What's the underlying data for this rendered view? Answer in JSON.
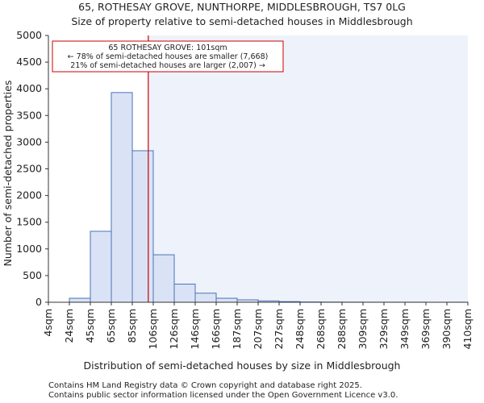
{
  "chart_data": {
    "type": "bar",
    "title_line1": "65, ROTHESAY GROVE, NUNTHORPE, MIDDLESBROUGH, TS7 0LG",
    "title_line2": "Size of property relative to semi-detached houses in Middlesbrough",
    "xlabel": "Distribution of semi-detached houses by size in Middlesbrough",
    "ylabel": "Number of semi-detached properties",
    "ylim": [
      0,
      5000
    ],
    "yticks": [
      0,
      500,
      1000,
      1500,
      2000,
      2500,
      3000,
      3500,
      4000,
      4500,
      5000
    ],
    "bin_edges": [
      4,
      24,
      45,
      65,
      85,
      106,
      126,
      146,
      166,
      187,
      207,
      227,
      248,
      268,
      288,
      309,
      329,
      349,
      369,
      390,
      410
    ],
    "tick_labels": [
      "4sqm",
      "24sqm",
      "45sqm",
      "65sqm",
      "85sqm",
      "106sqm",
      "126sqm",
      "146sqm",
      "166sqm",
      "187sqm",
      "207sqm",
      "227sqm",
      "248sqm",
      "268sqm",
      "288sqm",
      "309sqm",
      "329sqm",
      "349sqm",
      "369sqm",
      "390sqm",
      "410sqm"
    ],
    "values": [
      0,
      75,
      1330,
      3930,
      2840,
      890,
      340,
      170,
      75,
      45,
      25,
      12,
      5,
      3,
      2,
      1,
      1,
      1,
      0,
      1
    ],
    "property_size": 101,
    "annotation": {
      "line1": "65 ROTHESAY GROVE: 101sqm",
      "line2": "← 78% of semi-detached houses are smaller (7,668)",
      "line3": "21% of semi-detached houses are larger (2,007) →"
    },
    "colors": {
      "bar_fill": "#dae3f5",
      "bar_edge": "#4a72b8",
      "highlight_bg": "#eef2fb",
      "marker": "#cc0000"
    }
  },
  "footer": {
    "line1": "Contains HM Land Registry data © Crown copyright and database right 2025.",
    "line2": "Contains public sector information licensed under the Open Government Licence v3.0."
  }
}
